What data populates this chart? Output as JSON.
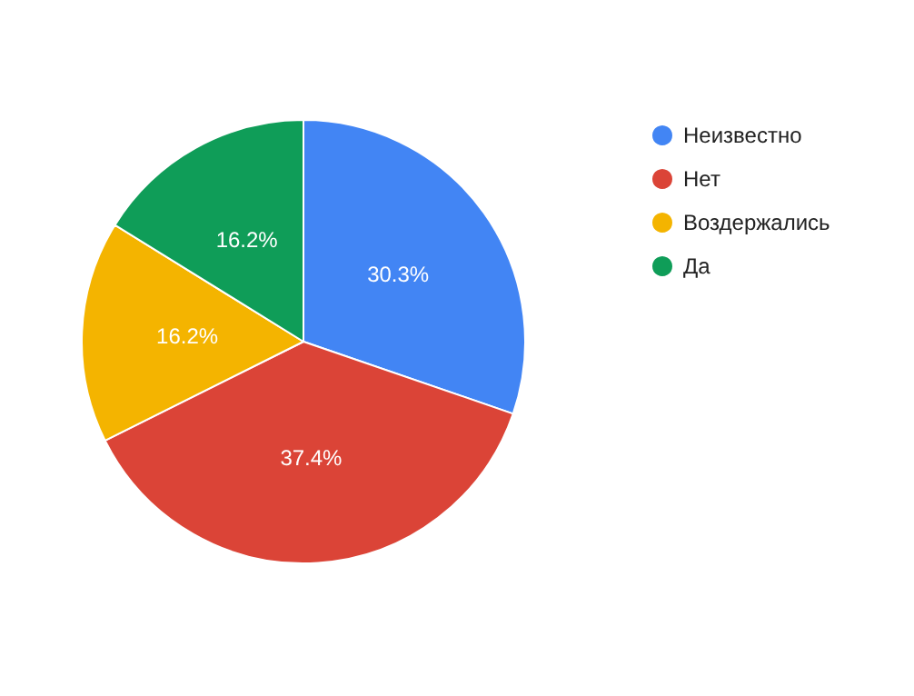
{
  "chart_data": {
    "type": "pie",
    "categories": [
      "Неизвестно",
      "Нет",
      "Воздержались",
      "Да"
    ],
    "values": [
      30.3,
      37.4,
      16.2,
      16.2
    ],
    "colors": [
      "#4285f4",
      "#db4437",
      "#f4b400",
      "#0f9d58"
    ],
    "value_labels": [
      "30.3%",
      "37.4%",
      "16.2%",
      "16.2%"
    ],
    "legend": "top right"
  }
}
